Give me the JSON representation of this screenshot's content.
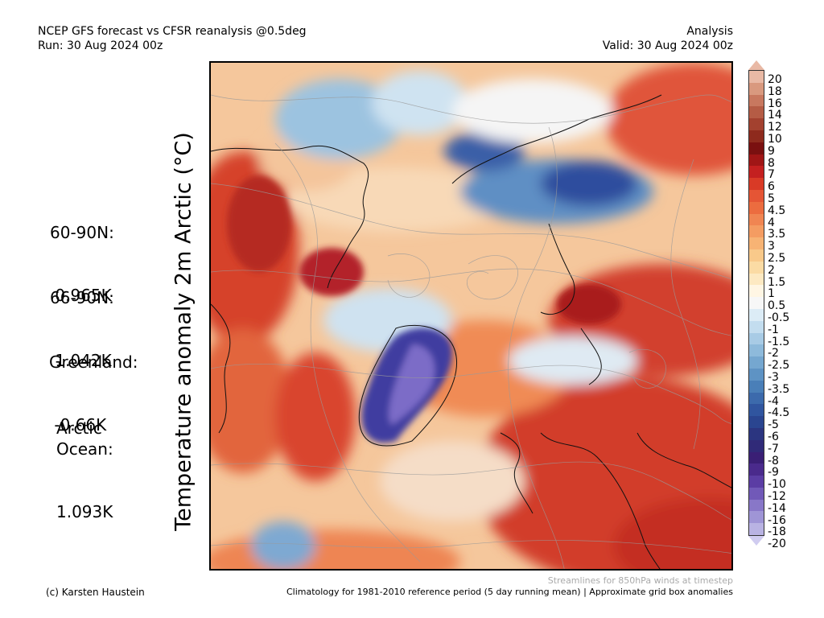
{
  "header": {
    "title_left": "NCEP GFS forecast vs CFSR reanalysis @0.5deg",
    "run": "Run: 30 Aug 2024 00z",
    "title_right": "Analysis",
    "valid": "Valid: 30 Aug 2024 00z"
  },
  "axis_label": "Temperature anomaly 2m Arctic (°C)",
  "stats": [
    {
      "label": "60-90N:",
      "value": " 0.965K"
    },
    {
      "label": "66-90N:",
      "value": " 1.042K"
    },
    {
      "label": "Greenland:",
      "value": " -0.66K"
    },
    {
      "label": "Arctic\nOcean:",
      "value": "1.093K"
    }
  ],
  "colorbar": {
    "labels": [
      "20",
      "18",
      "16",
      "14",
      "12",
      "10",
      "9",
      "8",
      "7",
      "6",
      "5",
      "4.5",
      "4",
      "3.5",
      "3",
      "2.5",
      "2",
      "1.5",
      "1",
      "0.5",
      "-0.5",
      "-1",
      "-1.5",
      "-2",
      "-2.5",
      "-3",
      "-3.5",
      "-4",
      "-4.5",
      "-5",
      "-6",
      "-7",
      "-8",
      "-9",
      "-10",
      "-12",
      "-14",
      "-16",
      "-18",
      "-20"
    ],
    "colors": [
      "#e9b9a5",
      "#d9997f",
      "#c8785f",
      "#b55c45",
      "#a3412f",
      "#8e2a1d",
      "#7a1010",
      "#a01616",
      "#c42020",
      "#d93a26",
      "#e55535",
      "#ec6c3f",
      "#f08552",
      "#f49c62",
      "#f7b374",
      "#f9c98a",
      "#fbdba4",
      "#fde9c2",
      "#fff6e4",
      "#f7f7f7",
      "#dcecf6",
      "#c3ddef",
      "#a8cbe5",
      "#8ebadb",
      "#75a7d0",
      "#5e93c4",
      "#4a7fb8",
      "#3c6aac",
      "#30559f",
      "#2a4590",
      "#2b3580",
      "#302a78",
      "#3a1f75",
      "#4a2a8c",
      "#5b3da4",
      "#7159b8",
      "#8877c8",
      "#9f95d6",
      "#b9b3e3"
    ]
  },
  "footer": {
    "credit": "(c) Karsten Haustein",
    "climatology": "Climatology for 1981-2010 reference period (5 day running mean) | Approximate grid box anomalies",
    "streamlines": "Streamlines for 850hPa winds at timestep"
  }
}
